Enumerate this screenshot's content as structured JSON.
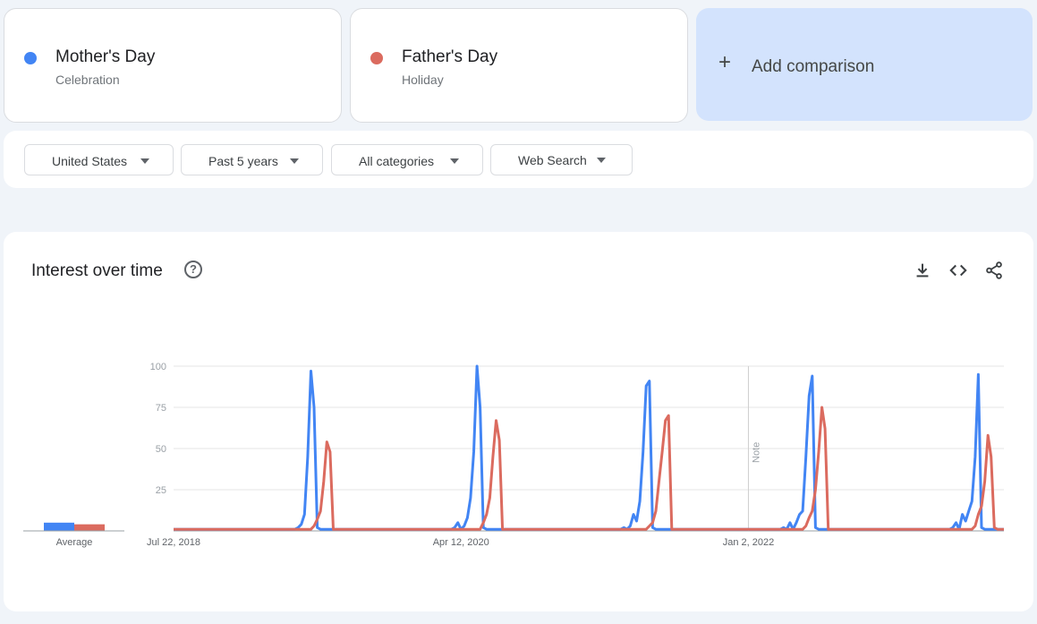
{
  "terms": [
    {
      "name": "Mother's Day",
      "category": "Celebration",
      "color": "#4285f4"
    },
    {
      "name": "Father's Day",
      "category": "Holiday",
      "color": "#db6b5f"
    }
  ],
  "add_comparison": {
    "plus": "+",
    "label": "Add comparison"
  },
  "filters": {
    "geo": "United States",
    "time": "Past 5 years",
    "category": "All categories",
    "property": "Web Search"
  },
  "chart": {
    "title": "Interest over time",
    "help": "?",
    "icons": [
      "download-icon",
      "embed-icon",
      "share-icon"
    ]
  },
  "chart_data": {
    "type": "line",
    "title": "Interest over time",
    "ylim": [
      0,
      100
    ],
    "yticks": [
      25,
      50,
      75,
      100
    ],
    "xtick_labels": [
      "Jul 22, 2018",
      "Apr 12, 2020",
      "Jan 2, 2022"
    ],
    "note_label": "Note",
    "note_date": "Jan 2, 2022",
    "grid": true,
    "average": {
      "label": "Average",
      "values": [
        5,
        4
      ]
    },
    "x_start": "Jul 22, 2018",
    "x_end": "Jul 16, 2023",
    "series": [
      {
        "name": "Mother's Day",
        "color": "#4285f4",
        "points": [
          [
            "2019-04-07",
            1
          ],
          [
            "2019-04-21",
            2
          ],
          [
            "2019-04-28",
            4
          ],
          [
            "2019-05-05",
            10
          ],
          [
            "2019-05-12",
            45
          ],
          [
            "2019-05-19",
            97
          ],
          [
            "2019-05-26",
            75
          ],
          [
            "2019-06-02",
            2
          ],
          [
            "2020-03-29",
            2
          ],
          [
            "2020-04-05",
            5
          ],
          [
            "2020-04-19",
            3
          ],
          [
            "2020-04-26",
            8
          ],
          [
            "2020-05-03",
            20
          ],
          [
            "2020-05-10",
            48
          ],
          [
            "2020-05-17",
            100
          ],
          [
            "2020-05-24",
            75
          ],
          [
            "2020-05-31",
            2
          ],
          [
            "2021-04-04",
            2
          ],
          [
            "2021-04-18",
            3
          ],
          [
            "2021-04-25",
            10
          ],
          [
            "2021-05-02",
            6
          ],
          [
            "2021-05-09",
            18
          ],
          [
            "2021-05-16",
            48
          ],
          [
            "2021-05-23",
            88
          ],
          [
            "2021-05-30",
            91
          ],
          [
            "2021-06-06",
            2
          ],
          [
            "2022-03-20",
            2
          ],
          [
            "2022-04-03",
            5
          ],
          [
            "2022-04-17",
            5
          ],
          [
            "2022-04-24",
            10
          ],
          [
            "2022-05-01",
            12
          ],
          [
            "2022-05-08",
            45
          ],
          [
            "2022-05-15",
            82
          ],
          [
            "2022-05-22",
            94
          ],
          [
            "2022-05-29",
            2
          ],
          [
            "2023-03-26",
            2
          ],
          [
            "2023-04-02",
            5
          ],
          [
            "2023-04-16",
            10
          ],
          [
            "2023-04-23",
            6
          ],
          [
            "2023-04-30",
            12
          ],
          [
            "2023-05-07",
            18
          ],
          [
            "2023-05-14",
            45
          ],
          [
            "2023-05-21",
            95
          ],
          [
            "2023-05-28",
            2
          ]
        ]
      },
      {
        "name": "Father's Day",
        "color": "#db6b5f",
        "points": [
          [
            "2019-05-26",
            3
          ],
          [
            "2019-06-02",
            7
          ],
          [
            "2019-06-09",
            12
          ],
          [
            "2019-06-16",
            30
          ],
          [
            "2019-06-23",
            54
          ],
          [
            "2019-06-30",
            48
          ],
          [
            "2019-07-07",
            1
          ],
          [
            "2020-05-31",
            5
          ],
          [
            "2020-06-07",
            10
          ],
          [
            "2020-06-14",
            20
          ],
          [
            "2020-06-21",
            45
          ],
          [
            "2020-06-28",
            67
          ],
          [
            "2020-07-05",
            55
          ],
          [
            "2020-07-12",
            1
          ],
          [
            "2021-05-30",
            3
          ],
          [
            "2021-06-06",
            5
          ],
          [
            "2021-06-13",
            12
          ],
          [
            "2021-06-20",
            30
          ],
          [
            "2021-06-27",
            48
          ],
          [
            "2021-07-04",
            67
          ],
          [
            "2021-07-11",
            70
          ],
          [
            "2021-07-18",
            1
          ],
          [
            "2022-05-08",
            3
          ],
          [
            "2022-05-15",
            8
          ],
          [
            "2022-05-22",
            12
          ],
          [
            "2022-05-29",
            25
          ],
          [
            "2022-06-05",
            48
          ],
          [
            "2022-06-12",
            75
          ],
          [
            "2022-06-19",
            62
          ],
          [
            "2022-06-26",
            1
          ],
          [
            "2023-05-14",
            3
          ],
          [
            "2023-05-21",
            10
          ],
          [
            "2023-05-28",
            15
          ],
          [
            "2023-06-04",
            30
          ],
          [
            "2023-06-11",
            58
          ],
          [
            "2023-06-18",
            45
          ],
          [
            "2023-06-25",
            2
          ]
        ]
      }
    ]
  }
}
